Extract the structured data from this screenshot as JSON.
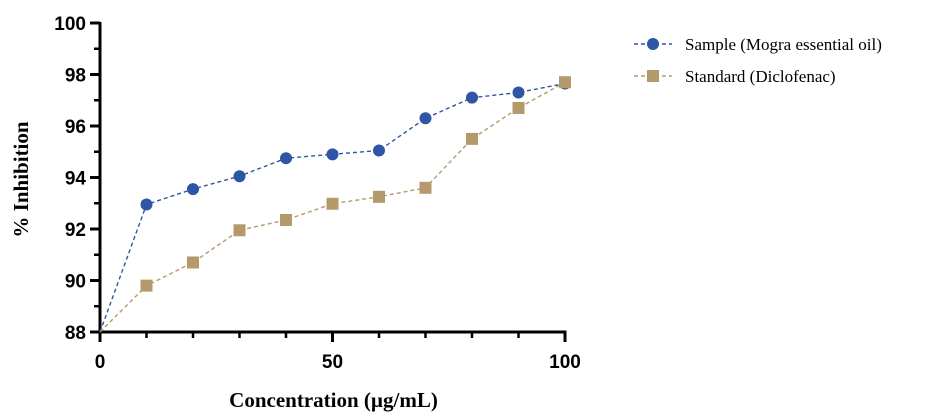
{
  "chart_data": {
    "type": "line",
    "xlabel": "Concentration (µg/mL)",
    "ylabel": "% Inhibition",
    "xlim": [
      0,
      100
    ],
    "ylim": [
      88,
      100
    ],
    "x_ticks": [
      "0",
      "50",
      "100"
    ],
    "y_ticks": [
      "88",
      "90",
      "92",
      "94",
      "96",
      "98",
      "100"
    ],
    "grid": false,
    "legend_position": "top-right",
    "series": [
      {
        "name": "Sample (Mogra essential oil)",
        "color": "#2f56a4",
        "marker": "circle",
        "line_style": "dashed",
        "x": [
          0,
          10,
          20,
          30,
          40,
          50,
          60,
          70,
          80,
          90,
          100
        ],
        "y": [
          88.0,
          92.95,
          93.55,
          94.05,
          94.75,
          94.9,
          95.05,
          96.3,
          97.1,
          97.3,
          97.65
        ]
      },
      {
        "name": "Standard (Diclofenac)",
        "color": "#b49a6b",
        "marker": "square",
        "line_style": "dashed",
        "x": [
          0,
          10,
          20,
          30,
          40,
          50,
          60,
          70,
          80,
          90,
          100
        ],
        "y": [
          88.0,
          89.8,
          90.7,
          91.95,
          92.35,
          92.98,
          93.25,
          93.6,
          95.5,
          96.7,
          97.7
        ]
      }
    ]
  }
}
